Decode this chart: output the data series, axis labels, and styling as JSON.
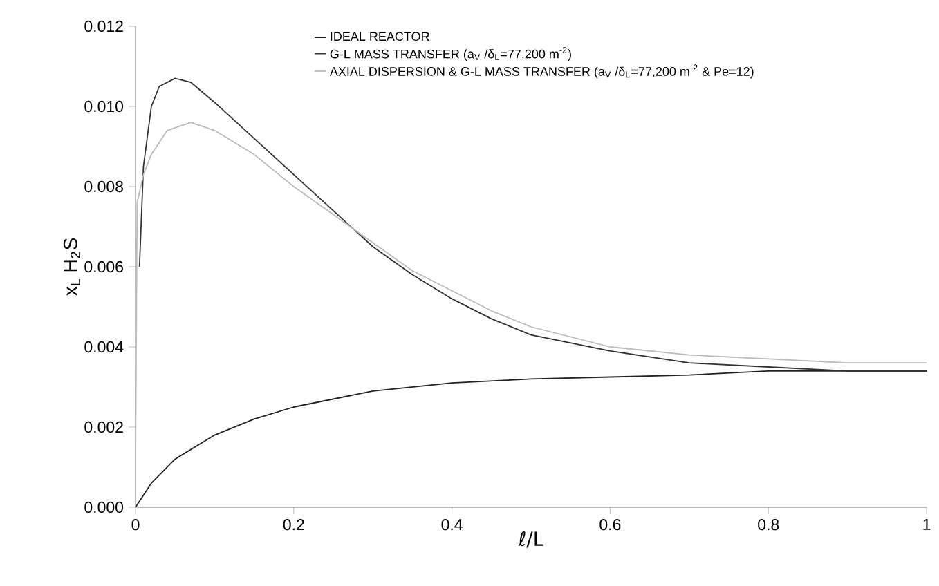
{
  "chart_data": {
    "type": "line",
    "xlabel": "ℓ/L",
    "ylabel": "x$_{L}$ H$_{2}$S",
    "xlim": [
      0,
      1
    ],
    "ylim": [
      0,
      0.012
    ],
    "xticks": [
      0,
      0.2,
      0.4,
      0.6,
      0.8,
      1
    ],
    "yticks": [
      {
        "value": 0,
        "label": "0.000"
      },
      {
        "value": 0.002,
        "label": "0.002"
      },
      {
        "value": 0.004,
        "label": "0.004"
      },
      {
        "value": 0.006,
        "label": "0.006"
      },
      {
        "value": 0.008,
        "label": "0.008"
      },
      {
        "value": 0.01,
        "label": "0.010"
      },
      {
        "value": 0.012,
        "label": "0.012"
      }
    ],
    "grid": false,
    "legend": "top",
    "marker": "none",
    "line_style": "solid",
    "series": [
      {
        "name": "IDEAL REACTOR",
        "color": "#222222",
        "x": [
          0,
          0.02,
          0.05,
          0.1,
          0.15,
          0.2,
          0.3,
          0.4,
          0.5,
          0.6,
          0.7,
          0.8,
          0.9,
          1
        ],
        "values": [
          0,
          0.0006,
          0.0012,
          0.0018,
          0.0022,
          0.0025,
          0.0029,
          0.0031,
          0.0032,
          0.00325,
          0.0033,
          0.0034,
          0.0034,
          0.0034
        ]
      },
      {
        "name": "G-L MASS TRANSFER (a$_{V}$ /δ$_{L}$=77,200 m$^{-2}$)",
        "color": "#333333",
        "x": [
          0.005,
          0.01,
          0.02,
          0.03,
          0.05,
          0.07,
          0.1,
          0.15,
          0.2,
          0.25,
          0.3,
          0.35,
          0.4,
          0.45,
          0.5,
          0.6,
          0.7,
          0.8,
          0.9,
          1
        ],
        "values": [
          0.006,
          0.0085,
          0.01,
          0.0105,
          0.0107,
          0.0106,
          0.0101,
          0.0092,
          0.0083,
          0.0074,
          0.0065,
          0.0058,
          0.0052,
          0.0047,
          0.0043,
          0.0039,
          0.0036,
          0.0035,
          0.0034,
          0.0034
        ]
      },
      {
        "name": "AXIAL DISPERSION & G-L MASS TRANSFER (a$_{V}$ /δ$_{L}$=77,200 m$^{-2}$ & Pe=12)",
        "color": "#bbbbbb",
        "x": [
          0,
          0.002,
          0.01,
          0.02,
          0.04,
          0.07,
          0.1,
          0.15,
          0.2,
          0.25,
          0.3,
          0.35,
          0.4,
          0.45,
          0.5,
          0.6,
          0.7,
          0.8,
          0.9,
          1
        ],
        "values": [
          0.001,
          0.0076,
          0.0083,
          0.0088,
          0.0094,
          0.0096,
          0.0094,
          0.0088,
          0.008,
          0.0073,
          0.0066,
          0.0059,
          0.0054,
          0.0049,
          0.0045,
          0.004,
          0.0038,
          0.0037,
          0.0036,
          0.0036
        ]
      }
    ]
  }
}
